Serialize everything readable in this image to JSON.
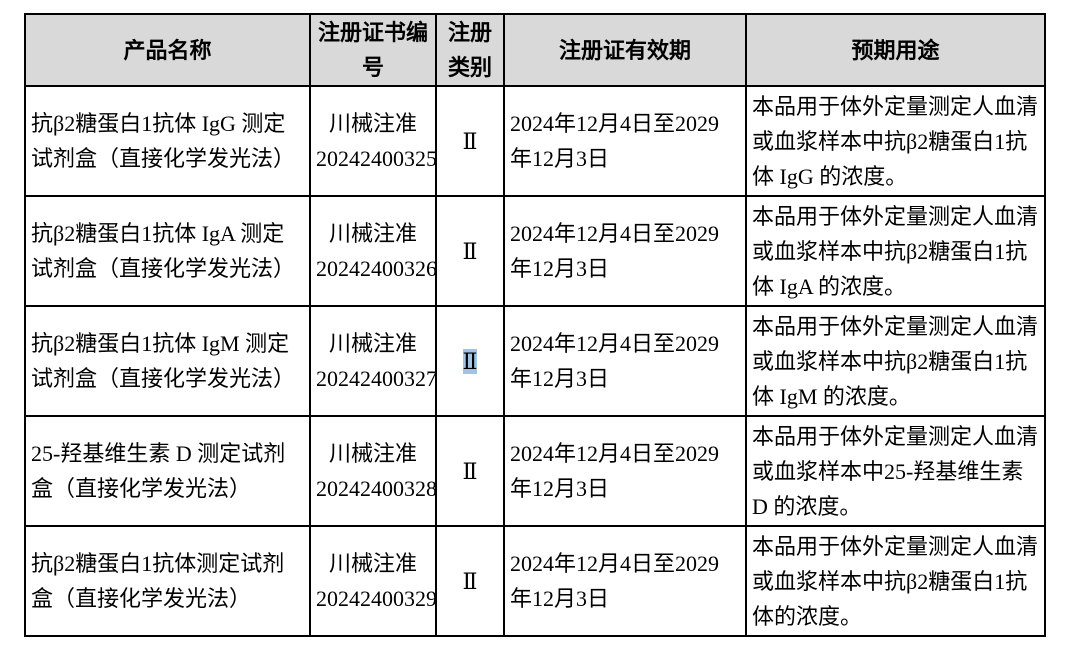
{
  "headers": [
    "产品名称",
    "注册证书编号",
    "注册类别",
    "注册证有效期",
    "预期用途"
  ],
  "rows": [
    {
      "name": "抗β2糖蛋白1抗体 IgG 测定试剂盒（直接化学发光法）",
      "cert": "川械注准20242400325",
      "class": "Ⅱ",
      "validity": "2024年12月4日至2029年12月3日",
      "use": "本品用于体外定量测定人血清或血浆样本中抗β2糖蛋白1抗体 IgG 的浓度。"
    },
    {
      "name": "抗β2糖蛋白1抗体 IgA 测定试剂盒（直接化学发光法）",
      "cert": "川械注准20242400326",
      "class": "Ⅱ",
      "validity": "2024年12月4日至2029年12月3日",
      "use": "本品用于体外定量测定人血清或血浆样本中抗β2糖蛋白1抗体 IgA 的浓度。"
    },
    {
      "name": "抗β2糖蛋白1抗体 IgM 测定试剂盒（直接化学发光法）",
      "cert": "川械注准20242400327",
      "class": "Ⅱ",
      "validity": "2024年12月4日至2029年12月3日",
      "use": "本品用于体外定量测定人血清或血浆样本中抗β2糖蛋白1抗体 IgM 的浓度。"
    },
    {
      "name": "25-羟基维生素 D 测定试剂盒（直接化学发光法）",
      "cert": "川械注准20242400328",
      "class": "Ⅱ",
      "validity": "2024年12月4日至2029年12月3日",
      "use": "本品用于体外定量测定人血清或血浆样本中25-羟基维生素 D 的浓度。"
    },
    {
      "name": "抗β2糖蛋白1抗体测定试剂盒（直接化学发光法）",
      "cert": "川械注准20242400329",
      "class": "Ⅱ",
      "validity": "2024年12月4日至2029年12月3日",
      "use": "本品用于体外定量测定人血清或血浆样本中抗β2糖蛋白1抗体的浓度。"
    }
  ]
}
